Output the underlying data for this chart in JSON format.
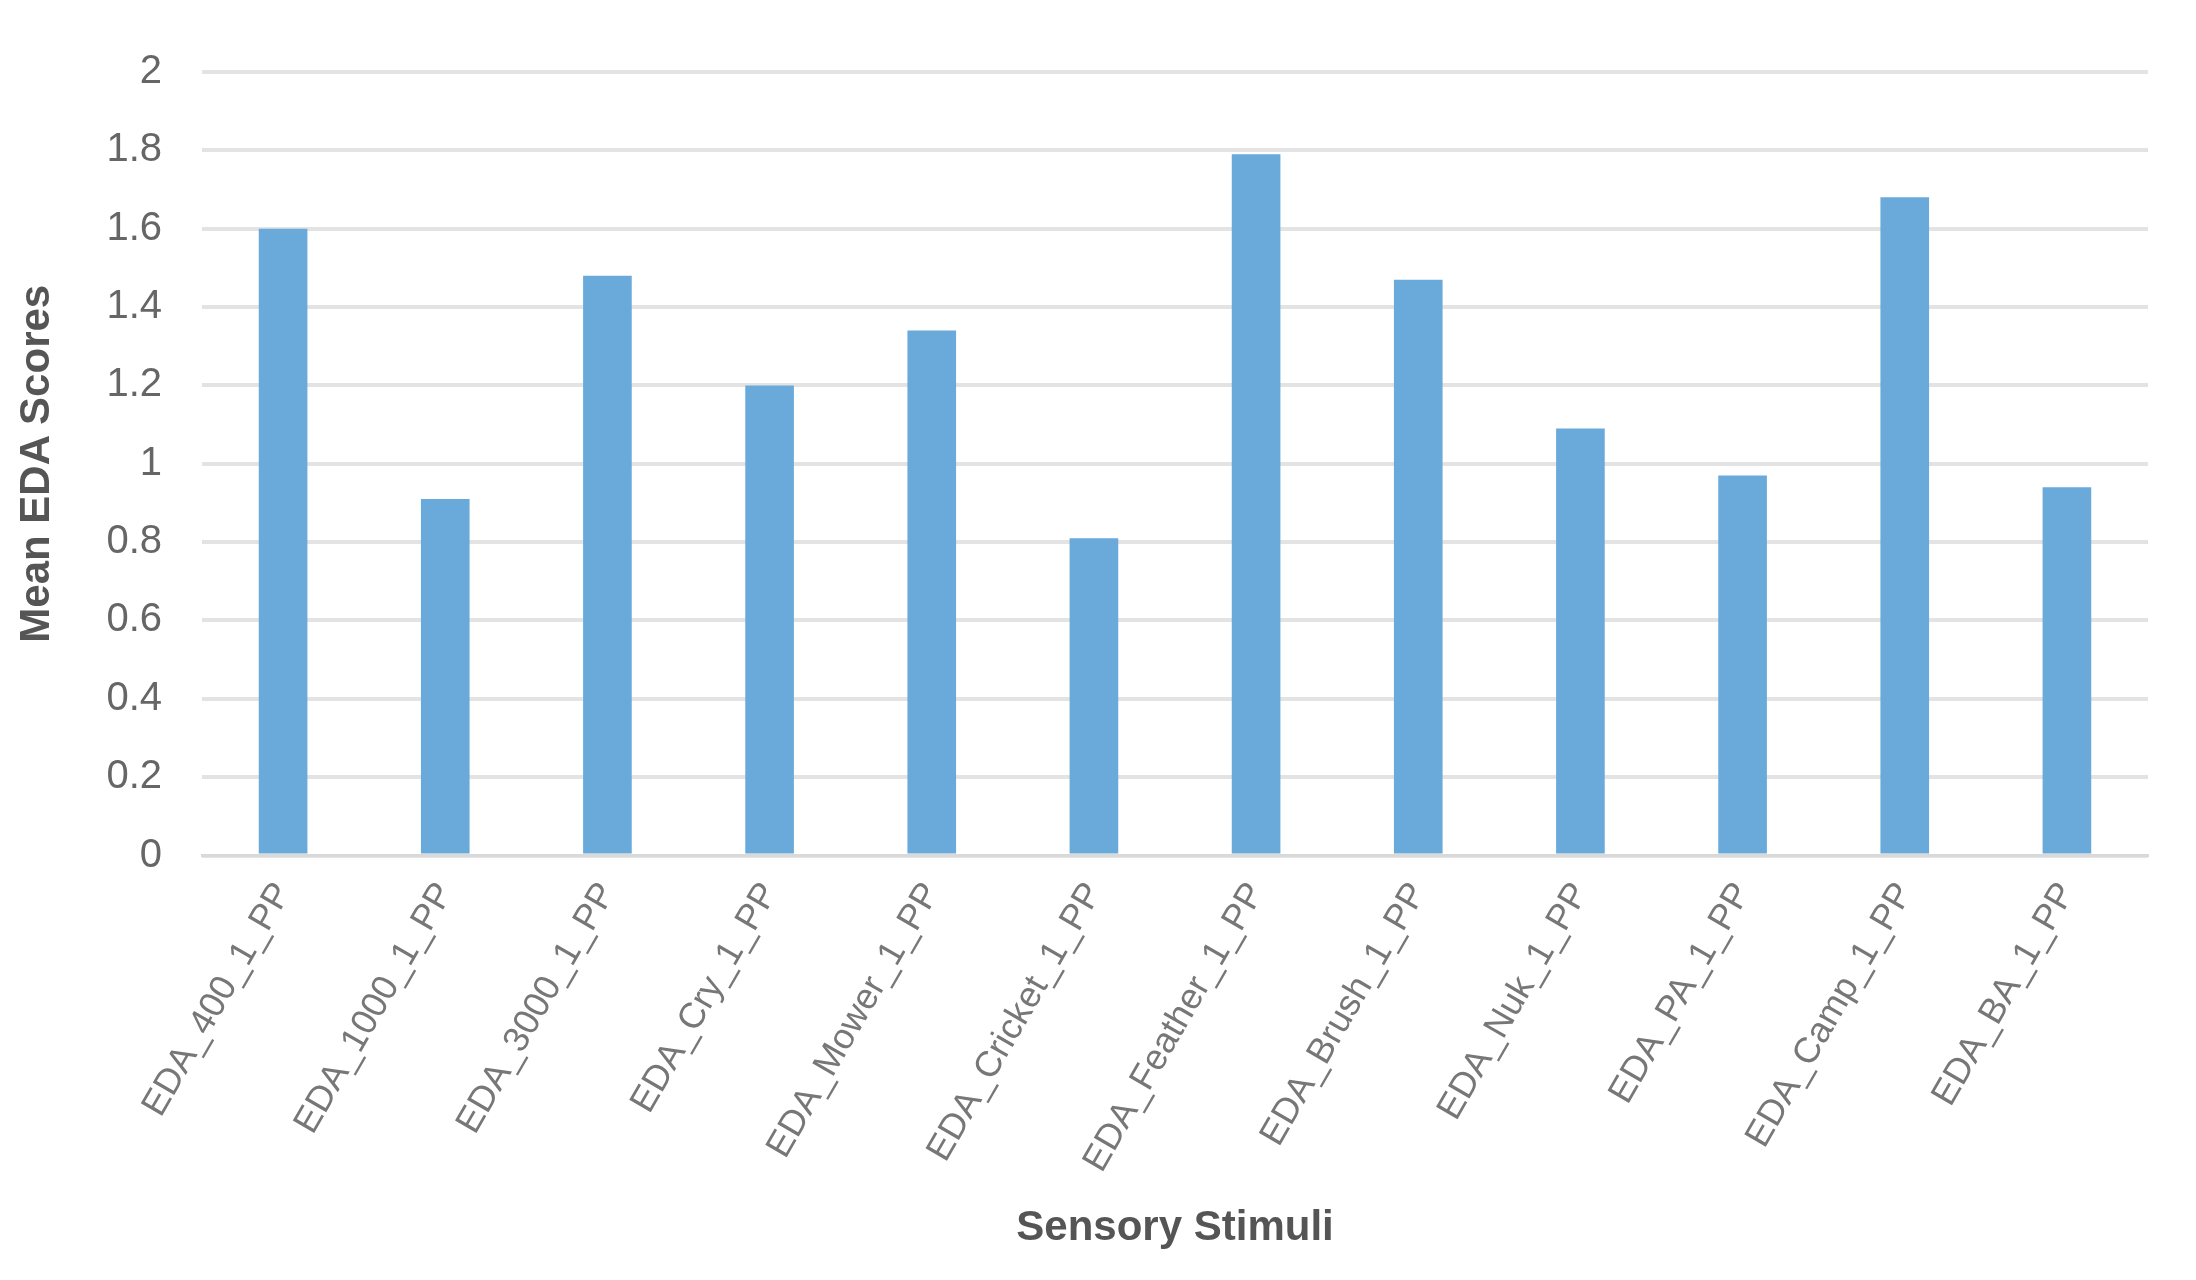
{
  "chart_data": {
    "type": "bar",
    "xlabel": "Sensory Stimuli",
    "ylabel": "Mean EDA Scores",
    "categories": [
      "EDA_400_1_PP",
      "EDA_1000_1_PP",
      "EDA_3000_1_PP",
      "EDA_Cry_1_PP",
      "EDA_Mower_1_PP",
      "EDA_Cricket_1_PP",
      "EDA_Feather_1_PP",
      "EDA_Brush_1_PP",
      "EDA_Nuk_1_PP",
      "EDA_PA_1_PP",
      "EDA_Camp_1_PP",
      "EDA_BA_1_PP"
    ],
    "values": [
      1.6,
      0.91,
      1.48,
      1.2,
      1.34,
      0.81,
      1.79,
      1.47,
      1.09,
      0.97,
      1.68,
      0.94
    ],
    "color": "#6aaadb",
    "ylim": [
      0,
      2
    ],
    "yticks": [
      0,
      0.2,
      0.4,
      0.6,
      0.8,
      1,
      1.2,
      1.4,
      1.6,
      1.8,
      2
    ],
    "grid": "y",
    "legend": false
  }
}
